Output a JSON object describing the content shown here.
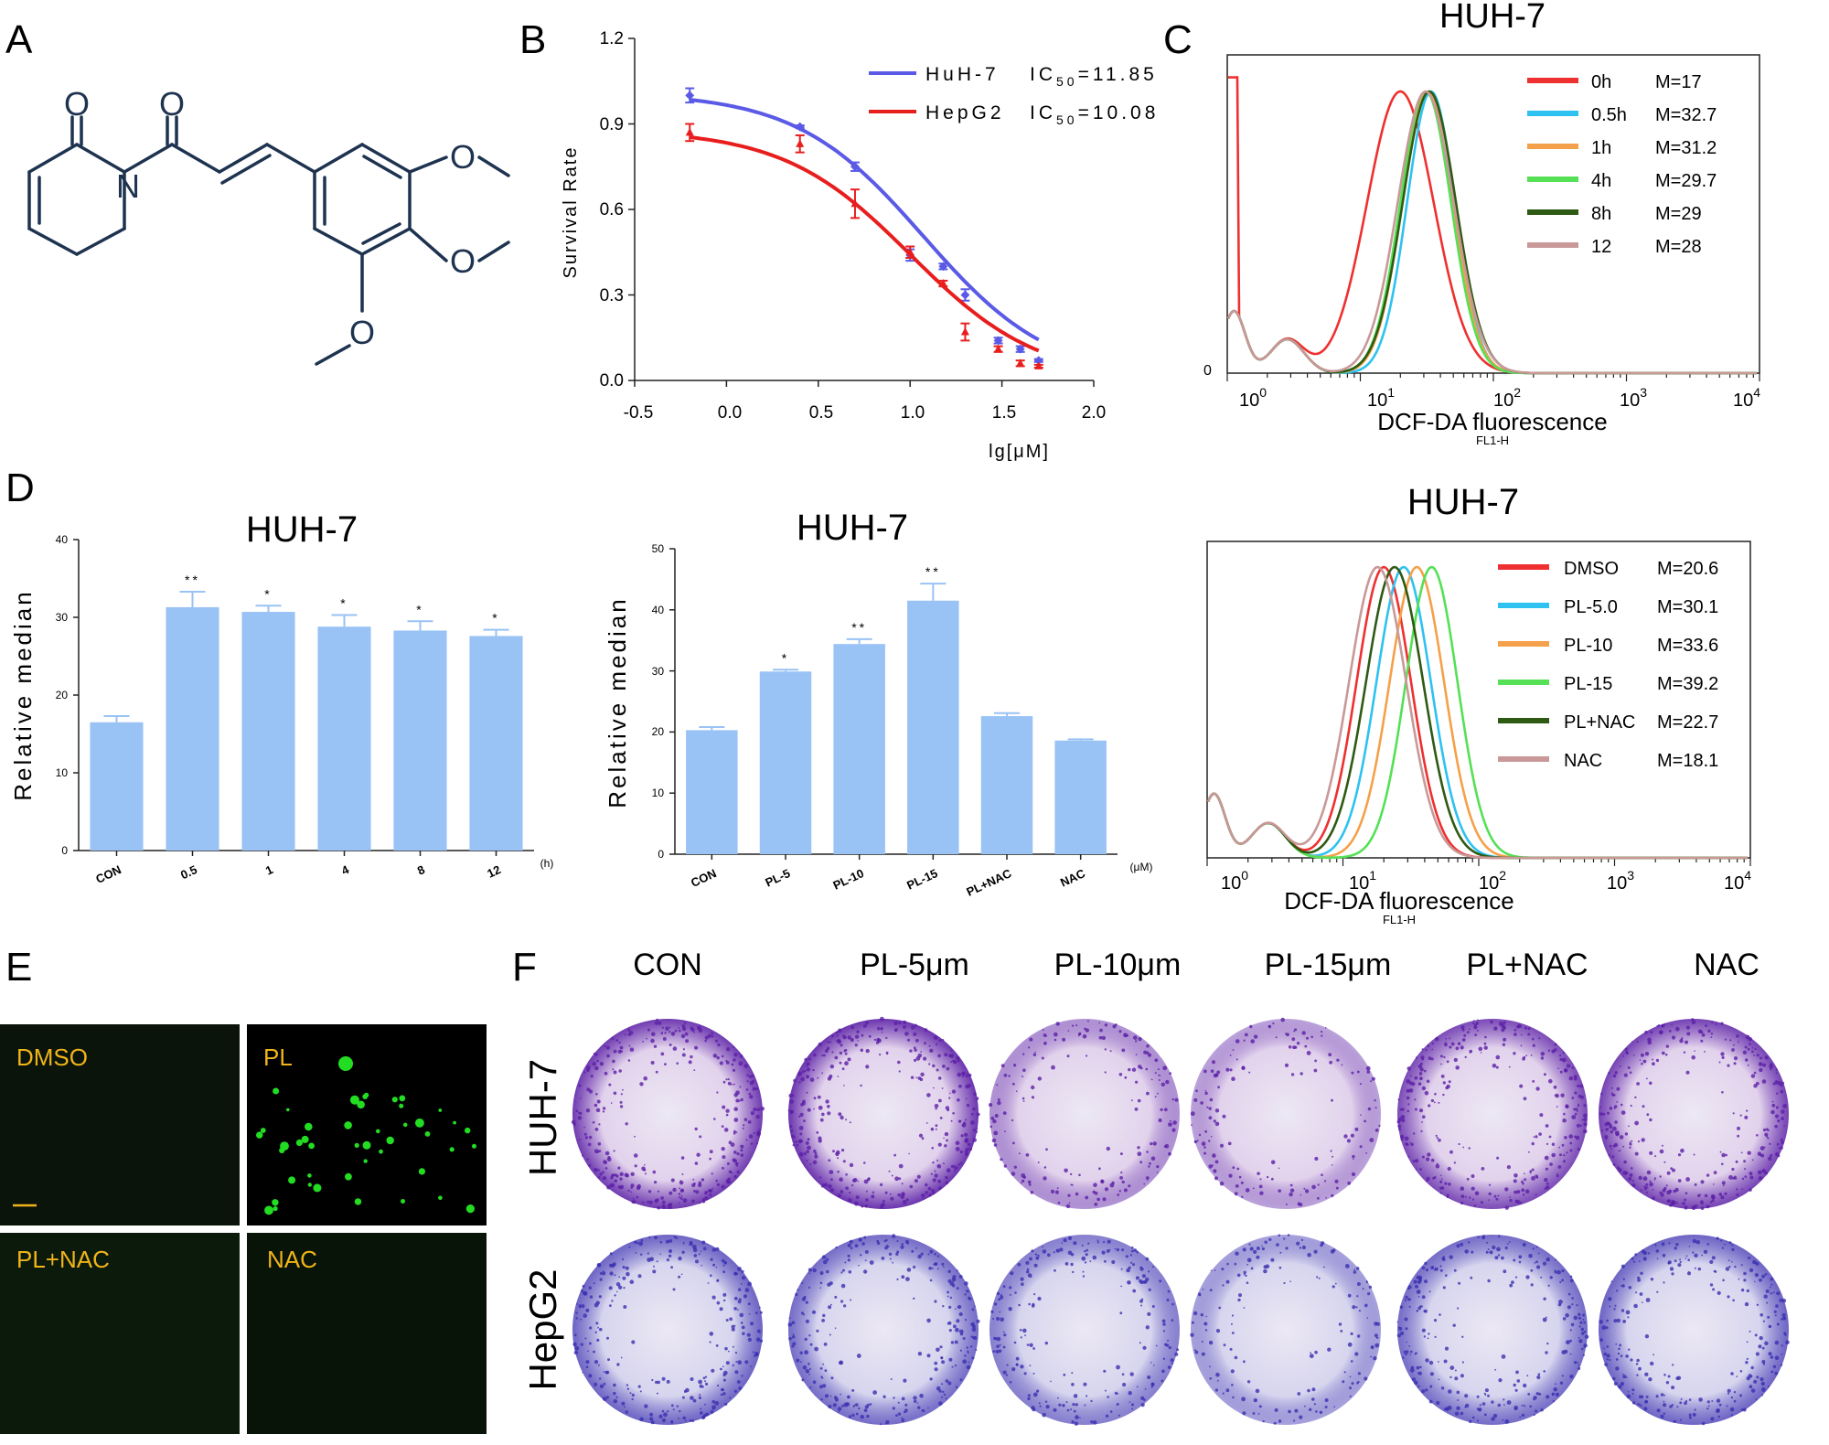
{
  "panel_labels": [
    "A",
    "B",
    "C",
    "D",
    "E",
    "F"
  ],
  "structure": {
    "atoms": [
      "O",
      "O",
      "N",
      "O",
      "O",
      "O"
    ]
  },
  "panelB": {
    "ylabel": "Survival Rate",
    "xlabel": "lg[μM]",
    "ytick_labels": [
      "1.2",
      "0.9",
      "0.6",
      "0.3",
      "0.0"
    ],
    "xtick_labels": [
      "-0.5",
      "0.0",
      "0.5",
      "1.0",
      "1.5",
      "2.0"
    ],
    "legend": [
      {
        "name": "HuH-7",
        "ic_label": "IC",
        "ic_sub": "50",
        "ic_value": "=11.85"
      },
      {
        "name": "HepG2",
        "ic_label": "IC",
        "ic_sub": "50",
        "ic_value": "=10.08"
      }
    ]
  },
  "panelC": {
    "title": "HUH-7",
    "xlabel": "DCF-DA fluorescence",
    "xsub": "FL1-H",
    "zero_label": "0",
    "xtick_labels": [
      {
        "base": "10",
        "exp": "0"
      },
      {
        "base": "10",
        "exp": "1"
      },
      {
        "base": "10",
        "exp": "2"
      },
      {
        "base": "10",
        "exp": "3"
      },
      {
        "base": "10",
        "exp": "4"
      }
    ],
    "legend": [
      {
        "label": "0h",
        "m": "M=17"
      },
      {
        "label": "0.5h",
        "m": "M=32.7"
      },
      {
        "label": "1h",
        "m": "M=31.2"
      },
      {
        "label": "4h",
        "m": "M=29.7"
      },
      {
        "label": "8h",
        "m": "M=29"
      },
      {
        "label": "12",
        "m": "M=28"
      }
    ]
  },
  "panelD1": {
    "title": "HUH-7",
    "ylabel": "Relative median",
    "unit": "(h)",
    "ytick_labels": [
      "0",
      "10",
      "20",
      "30",
      "40"
    ],
    "categories": [
      "CON",
      "0.5",
      "1",
      "4",
      "8",
      "12"
    ],
    "stars": [
      "",
      "**",
      "*",
      "*",
      "*",
      "*"
    ]
  },
  "panelD2": {
    "title": "HUH-7",
    "ylabel": "Relative median",
    "unit": "(μM)",
    "ytick_labels": [
      "0",
      "10",
      "20",
      "30",
      "40",
      "50"
    ],
    "categories": [
      "CON",
      "PL-5",
      "PL-10",
      "PL-15",
      "PL+NAC",
      "NAC"
    ],
    "stars": [
      "",
      "*",
      "**",
      "**",
      "",
      ""
    ]
  },
  "panelC2": {
    "title": "HUH-7",
    "xlabel": "DCF-DA fluorescence",
    "xsub": "FL1-H",
    "xtick_labels": [
      {
        "base": "10",
        "exp": "0"
      },
      {
        "base": "10",
        "exp": "1"
      },
      {
        "base": "10",
        "exp": "2"
      },
      {
        "base": "10",
        "exp": "3"
      },
      {
        "base": "10",
        "exp": "4"
      }
    ],
    "legend": [
      {
        "label": "DMSO",
        "m": "M=20.6"
      },
      {
        "label": "PL-5.0",
        "m": "M=30.1"
      },
      {
        "label": "PL-10",
        "m": "M=33.6"
      },
      {
        "label": "PL-15",
        "m": "M=39.2"
      },
      {
        "label": "PL+NAC",
        "m": "M=22.7"
      },
      {
        "label": "NAC",
        "m": "M=18.1"
      }
    ]
  },
  "panelE": {
    "tiles": [
      "DMSO",
      "PL",
      "PL+NAC",
      "NAC"
    ]
  },
  "panelF": {
    "columns": [
      "CON",
      "PL-5μm",
      "PL-10μm",
      "PL-15μm",
      "PL+NAC",
      "NAC"
    ],
    "rows": [
      "HUH-7",
      "HepG2"
    ]
  },
  "colors": {
    "huh7": "#5a5ae6",
    "hepg2": "#e81e1e",
    "bar": "#99c2f5",
    "t0": "#ee3030",
    "t05": "#2ec2f0",
    "t1": "#f5a04a",
    "t4": "#55e055",
    "t8": "#2e5a14",
    "t12": "#c99898",
    "stain_huh7": "#5b1fa6",
    "stain_hepg2": "#3b2fb0",
    "gfp": "#22dd22",
    "label_yellow": "#f0b419"
  },
  "chart_data": [
    {
      "type": "scatter",
      "title": "",
      "xlabel": "lg[μM]",
      "ylabel": "Survival Rate",
      "xlim": [
        -0.5,
        2.0
      ],
      "ylim": [
        0,
        1.2
      ],
      "series": [
        {
          "name": "HuH-7",
          "ic50": 11.85,
          "x": [
            -0.2,
            0.4,
            0.7,
            1.0,
            1.18,
            1.3,
            1.48,
            1.6,
            1.7
          ],
          "y": [
            1.0,
            0.89,
            0.75,
            0.44,
            0.4,
            0.3,
            0.14,
            0.11,
            0.07
          ],
          "err": [
            0.025,
            0.005,
            0.015,
            0.02,
            0.01,
            0.02,
            0.01,
            0.01,
            0.005
          ]
        },
        {
          "name": "HepG2",
          "ic50": 10.08,
          "x": [
            -0.2,
            0.4,
            0.7,
            1.0,
            1.18,
            1.3,
            1.48,
            1.6,
            1.7
          ],
          "y": [
            0.87,
            0.83,
            0.62,
            0.45,
            0.34,
            0.17,
            0.11,
            0.06,
            0.05
          ],
          "err": [
            0.03,
            0.03,
            0.05,
            0.02,
            0.01,
            0.03,
            0.01,
            0.01,
            0.005
          ]
        }
      ]
    },
    {
      "type": "line",
      "title": "HUH-7",
      "xlabel": "DCF-DA fluorescence",
      "ylabel": "",
      "log_x": true,
      "xlim": [
        0.5,
        10000
      ],
      "series": [
        {
          "name": "0h",
          "median": 17,
          "peak": 20,
          "width": 0.25
        },
        {
          "name": "0.5h",
          "median": 32.7,
          "peak": 34,
          "width": 0.18
        },
        {
          "name": "1h",
          "median": 31.2,
          "peak": 32,
          "width": 0.19
        },
        {
          "name": "4h",
          "median": 29.7,
          "peak": 31,
          "width": 0.19
        },
        {
          "name": "8h",
          "median": 29,
          "peak": 33,
          "width": 0.2
        },
        {
          "name": "12",
          "median": 28,
          "peak": 31,
          "width": 0.21
        }
      ]
    },
    {
      "type": "bar",
      "title": "HUH-7",
      "xlabel": "",
      "ylabel": "Relative median",
      "ylim": [
        0,
        40
      ],
      "categories": [
        "CON",
        "0.5",
        "1",
        "4",
        "8",
        "12"
      ],
      "values": [
        16.5,
        31.3,
        30.7,
        28.8,
        28.3,
        27.6
      ],
      "errors": [
        0.8,
        2.0,
        0.8,
        1.5,
        1.2,
        0.8
      ]
    },
    {
      "type": "bar",
      "title": "HUH-7",
      "xlabel": "",
      "ylabel": "Relative median",
      "ylim": [
        0,
        50
      ],
      "categories": [
        "CON",
        "PL-5",
        "PL-10",
        "PL-15",
        "PL+NAC",
        "NAC"
      ],
      "values": [
        20.3,
        29.9,
        34.4,
        41.5,
        22.6,
        18.6
      ],
      "errors": [
        0.5,
        0.3,
        0.8,
        2.8,
        0.5,
        0.2
      ]
    },
    {
      "type": "line",
      "title": "HUH-7",
      "xlabel": "DCF-DA fluorescence",
      "ylabel": "",
      "log_x": true,
      "xlim": [
        0.5,
        10000
      ],
      "series": [
        {
          "name": "DMSO",
          "median": 20.6,
          "peak": 20,
          "width": 0.2
        },
        {
          "name": "PL-5.0",
          "median": 30.1,
          "peak": 28,
          "width": 0.2
        },
        {
          "name": "PL-10",
          "median": 33.6,
          "peak": 35,
          "width": 0.2
        },
        {
          "name": "PL-15",
          "median": 39.2,
          "peak": 45,
          "width": 0.19
        },
        {
          "name": "PL+NAC",
          "median": 22.7,
          "peak": 24,
          "width": 0.21
        },
        {
          "name": "NAC",
          "median": 18.1,
          "peak": 18,
          "width": 0.21
        }
      ]
    }
  ]
}
